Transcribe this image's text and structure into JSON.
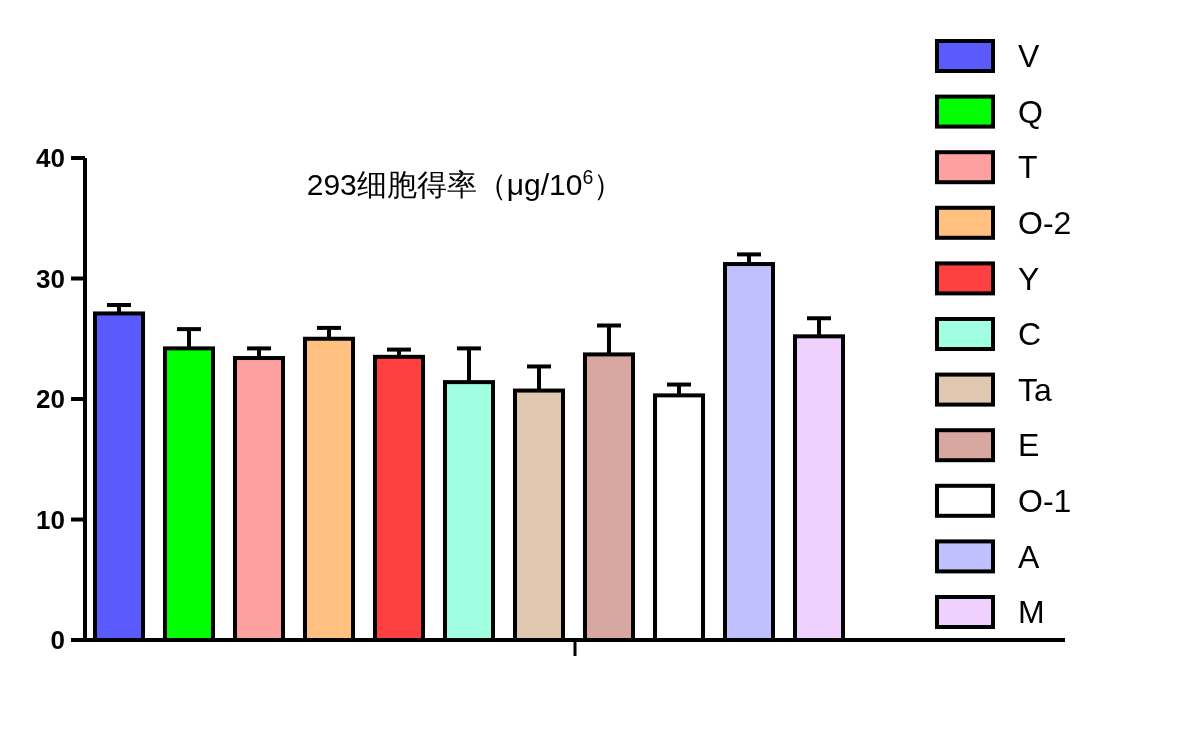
{
  "chart_data": {
    "type": "bar",
    "title": "293细胞得率（μg/10$^{6}$）",
    "categories": [
      null
    ],
    "series": [
      {
        "name": "V",
        "color": "#5a5aff",
        "values": [
          27.1
        ],
        "errors": [
          0.7
        ]
      },
      {
        "name": "Q",
        "color": "#00ff00",
        "values": [
          24.2
        ],
        "errors": [
          1.6
        ]
      },
      {
        "name": "T",
        "color": "#ffa0a0",
        "values": [
          23.4
        ],
        "errors": [
          0.8
        ]
      },
      {
        "name": "O-2",
        "color": "#ffc080",
        "values": [
          25.0
        ],
        "errors": [
          0.9
        ]
      },
      {
        "name": "Y",
        "color": "#ff4040",
        "values": [
          23.5
        ],
        "errors": [
          0.6
        ]
      },
      {
        "name": "C",
        "color": "#a0ffe0",
        "values": [
          21.4
        ],
        "errors": [
          2.8
        ]
      },
      {
        "name": "Ta",
        "color": "#e0c8b0",
        "values": [
          20.7
        ],
        "errors": [
          2.0
        ]
      },
      {
        "name": "E",
        "color": "#d8a8a0",
        "values": [
          23.7
        ],
        "errors": [
          2.4
        ]
      },
      {
        "name": "O-1",
        "color": "#ffffff",
        "values": [
          20.3
        ],
        "errors": [
          0.9
        ]
      },
      {
        "name": "A",
        "color": "#c0c0ff",
        "values": [
          31.2
        ],
        "errors": [
          0.8
        ]
      },
      {
        "name": "M",
        "color": "#f0d0ff",
        "values": [
          25.2
        ],
        "errors": [
          1.5
        ]
      }
    ],
    "ylim": [
      0,
      40
    ],
    "yticks": [
      0,
      10,
      20,
      30,
      40
    ],
    "grid": false,
    "legend": "right"
  }
}
